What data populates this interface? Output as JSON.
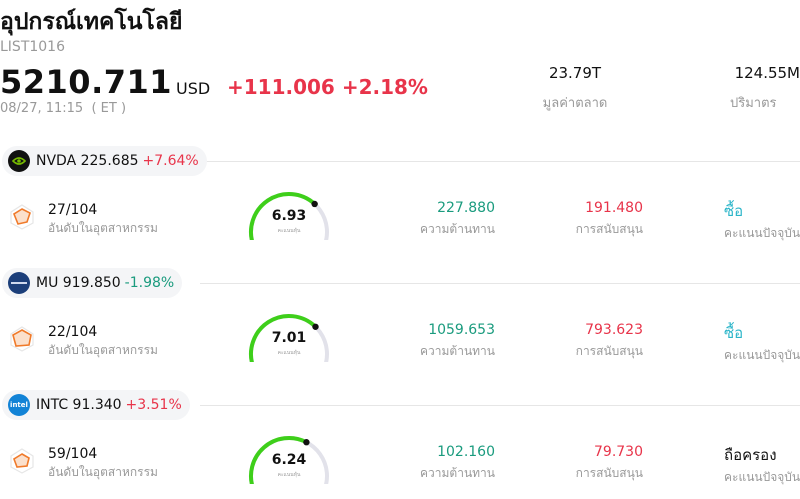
{
  "header": {
    "title": "อุปกรณ์เทคโนโลยี",
    "code": "LIST1016",
    "price": "5210.711",
    "currency": "USD",
    "change": "+111.006 +2.18%",
    "time": "08/27, 11:15  ( ET )",
    "market_cap_value": "23.79T",
    "market_cap_label": "มูลค่าตลาด",
    "volume_value": "124.55M",
    "volume_label": "ปริมาตร"
  },
  "stocks": [
    {
      "ticker_line": "NVDA 225.685",
      "change": "+7.64%",
      "direction": "up",
      "rank": "27/104",
      "rank_label": "อันดับในอุตสาหกรรม",
      "score": 6.93,
      "score_text": "6.93",
      "score_label": "คะแนนหุ้น",
      "resistance": "227.880",
      "resistance_label": "ความต้านทาน",
      "support": "191.480",
      "support_label": "การสนับสนุน",
      "rating": "ซื้อ",
      "rating_color": "#2bb5c9",
      "rating_label": "คะแนนปัจจุบัน"
    },
    {
      "ticker_line": "MU 919.850",
      "change": "-1.98%",
      "direction": "down",
      "rank": "22/104",
      "rank_label": "อันดับในอุตสาหกรรม",
      "score": 7.01,
      "score_text": "7.01",
      "score_label": "คะแนนหุ้น",
      "resistance": "1059.653",
      "resistance_label": "ความต้านทาน",
      "support": "793.623",
      "support_label": "การสนับสนุน",
      "rating": "ซื้อ",
      "rating_color": "#2bb5c9",
      "rating_label": "คะแนนปัจจุบัน"
    },
    {
      "ticker_line": "INTC 91.340",
      "change": "+3.51%",
      "direction": "up",
      "rank": "59/104",
      "rank_label": "อันดับในอุตสาหกรรม",
      "score": 6.24,
      "score_text": "6.24",
      "score_label": "คะแนนหุ้น",
      "resistance": "102.160",
      "resistance_label": "ความต้านทาน",
      "support": "79.730",
      "support_label": "การสนับสนุน",
      "rating": "ถือครอง",
      "rating_color": "#111111",
      "rating_label": "คะแนนปัจจุบัน"
    }
  ],
  "colors": {
    "up": "#e8344a",
    "down": "#1a9b7e",
    "gauge_fill": "#3ecf1a",
    "gauge_track": "#e2e2ea"
  },
  "icons": [
    "nvidia-logo-icon",
    "micron-logo-icon",
    "intel-logo-icon",
    "radar-rank-icon"
  ]
}
